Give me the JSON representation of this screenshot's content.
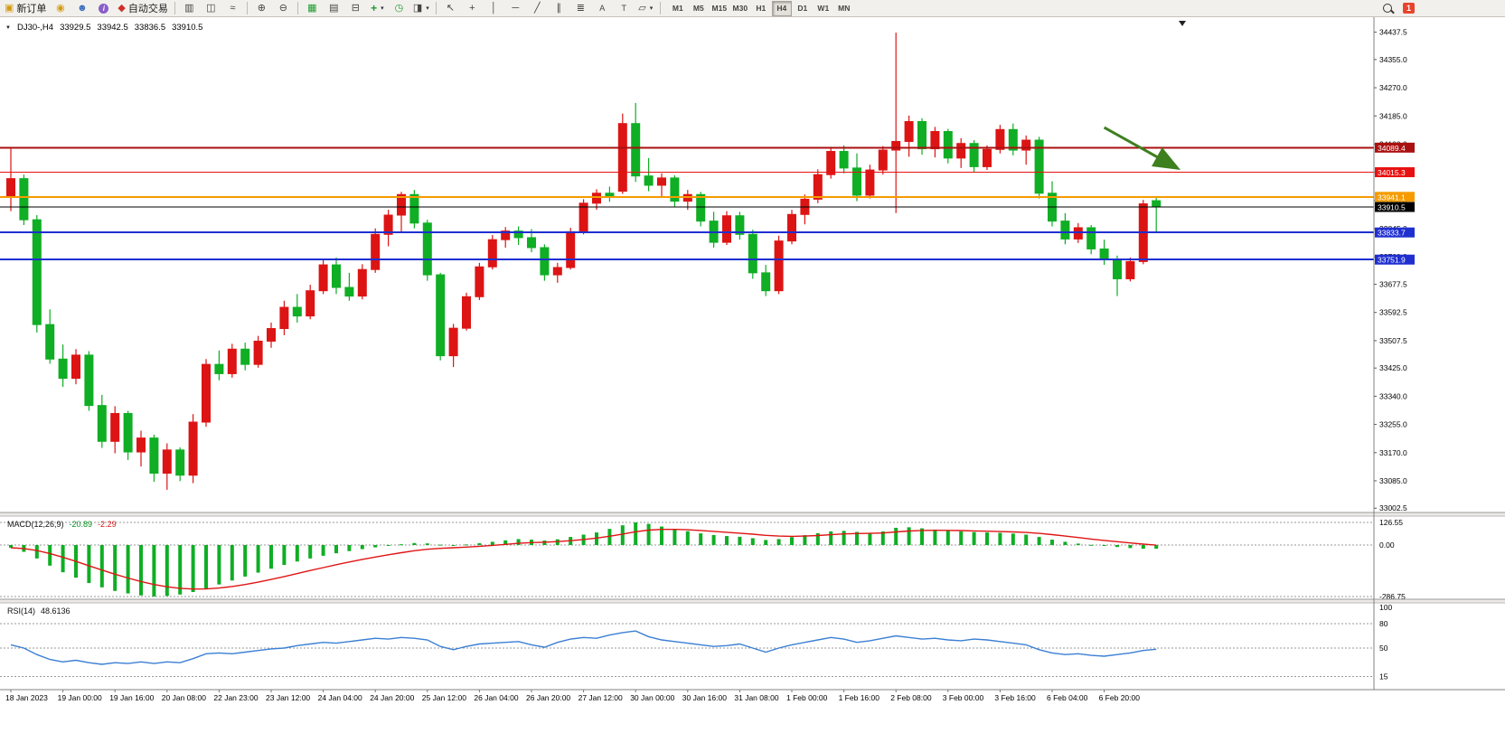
{
  "toolbar": {
    "new_order": "新订单",
    "auto_trading": "自动交易",
    "timeframes": [
      "M1",
      "M5",
      "M15",
      "M30",
      "H1",
      "H4",
      "D1",
      "W1",
      "MN"
    ],
    "active_timeframe": "H4",
    "notification_count": "1"
  },
  "icons": {
    "expand": "▼",
    "new_order": "▣",
    "coins": "◉",
    "profile": "☻",
    "info": "i",
    "auto_trading": "◆",
    "chart_bars": "▥",
    "chart_candles": "◫",
    "chart_line": "≈",
    "zoom_in": "⊕",
    "zoom_out": "⊖",
    "tile": "▦",
    "cascade": "▤",
    "arrange": "⊟",
    "new_chart": "+",
    "autoscroll": "◷",
    "shift_chart": "◨",
    "cursor": "↖",
    "crosshair": "+",
    "vline": "│",
    "hline": "─",
    "trendline": "╱",
    "channel": "∥",
    "fibonacci": "≣",
    "text": "A",
    "label": "T",
    "shapes": "▱",
    "dropdown": "▾",
    "shift_marker": "▼"
  },
  "chart_header": {
    "symbol": "DJ30-,H4",
    "open": "33929.5",
    "high": "33942.5",
    "low": "33836.5",
    "close": "33910.5"
  },
  "chart_data": {
    "type": "candlestick",
    "symbol": "DJ30-",
    "timeframe": "H4",
    "colors": {
      "up": "#dd1414",
      "down": "#0fae24",
      "macd_hist": "#0fae24",
      "macd_signal": "#e01515",
      "rsi_line": "#3b7fd4",
      "grid": "#a8a8a8",
      "axis_text": "#000000"
    },
    "price_axis_ticks": [
      34437.5,
      34355.0,
      34270.0,
      34185.0,
      34100.0,
      34015.0,
      33930.0,
      33845.0,
      33760.0,
      33677.5,
      33592.5,
      33507.5,
      33425.0,
      33340.0,
      33255.0,
      33170.0,
      33085.0,
      33002.5
    ],
    "hlines": [
      {
        "price": 34089.4,
        "label": "34089.4",
        "color": "#aa1111",
        "width": 2
      },
      {
        "price": 34015.3,
        "label": "34015.3",
        "color": "#e81111",
        "width": 1.2
      },
      {
        "price": 33941.1,
        "label": "33941.1",
        "color": "#f59b00",
        "width": 2
      },
      {
        "price": 33833.7,
        "label": "33833.7",
        "color": "#1f2fd0",
        "width": 2
      },
      {
        "price": 33751.9,
        "label": "33751.9",
        "color": "#1f2fd0",
        "width": 2
      }
    ],
    "current_price": {
      "price": 33910.5,
      "label": "33910.5",
      "color": "#000000"
    },
    "annotation_arrow": {
      "from_bar": 84,
      "from_price": 34150,
      "to_bar": 89.5,
      "to_price": 34030,
      "color": "#3e7f1f"
    },
    "time_labels": [
      "18 Jan 2023",
      "19 Jan 00:00",
      "19 Jan 16:00",
      "20 Jan 08:00",
      "22 Jan 23:00",
      "23 Jan 12:00",
      "24 Jan 04:00",
      "24 Jan 20:00",
      "25 Jan 12:00",
      "26 Jan 04:00",
      "26 Jan 20:00",
      "27 Jan 12:00",
      "30 Jan 00:00",
      "30 Jan 16:00",
      "31 Jan 08:00",
      "1 Feb 00:00",
      "1 Feb 16:00",
      "2 Feb 08:00",
      "3 Feb 00:00",
      "3 Feb 16:00",
      "6 Feb 04:00",
      "6 Feb 20:00"
    ],
    "candles": [
      [
        33940,
        34090,
        33898,
        33996
      ],
      [
        33996,
        34008,
        33856,
        33872
      ],
      [
        33872,
        33886,
        33532,
        33556
      ],
      [
        33556,
        33602,
        33438,
        33452
      ],
      [
        33452,
        33496,
        33368,
        33394
      ],
      [
        33394,
        33482,
        33376,
        33464
      ],
      [
        33464,
        33476,
        33296,
        33312
      ],
      [
        33312,
        33344,
        33184,
        33204
      ],
      [
        33204,
        33310,
        33168,
        33288
      ],
      [
        33288,
        33296,
        33148,
        33172
      ],
      [
        33172,
        33236,
        33128,
        33214
      ],
      [
        33214,
        33224,
        33082,
        33108
      ],
      [
        33108,
        33198,
        33058,
        33178
      ],
      [
        33178,
        33186,
        33084,
        33102
      ],
      [
        33102,
        33286,
        33078,
        33262
      ],
      [
        33262,
        33452,
        33248,
        33436
      ],
      [
        33436,
        33478,
        33388,
        33408
      ],
      [
        33408,
        33498,
        33396,
        33482
      ],
      [
        33482,
        33502,
        33418,
        33436
      ],
      [
        33436,
        33522,
        33426,
        33506
      ],
      [
        33506,
        33562,
        33486,
        33544
      ],
      [
        33544,
        33628,
        33524,
        33608
      ],
      [
        33608,
        33648,
        33562,
        33582
      ],
      [
        33582,
        33676,
        33572,
        33658
      ],
      [
        33658,
        33752,
        33648,
        33736
      ],
      [
        33736,
        33758,
        33648,
        33668
      ],
      [
        33668,
        33712,
        33628,
        33642
      ],
      [
        33642,
        33738,
        33632,
        33722
      ],
      [
        33722,
        33846,
        33712,
        33828
      ],
      [
        33828,
        33902,
        33792,
        33886
      ],
      [
        33886,
        33956,
        33836,
        33948
      ],
      [
        33948,
        33962,
        33846,
        33862
      ],
      [
        33862,
        33872,
        33688,
        33706
      ],
      [
        33706,
        33712,
        33448,
        33462
      ],
      [
        33462,
        33558,
        33428,
        33545
      ],
      [
        33545,
        33652,
        33538,
        33640
      ],
      [
        33640,
        33742,
        33630,
        33730
      ],
      [
        33730,
        33826,
        33722,
        33812
      ],
      [
        33812,
        33850,
        33788,
        33838
      ],
      [
        33838,
        33852,
        33796,
        33818
      ],
      [
        33818,
        33844,
        33774,
        33788
      ],
      [
        33788,
        33798,
        33688,
        33706
      ],
      [
        33706,
        33742,
        33682,
        33728
      ],
      [
        33728,
        33848,
        33722,
        33836
      ],
      [
        33836,
        33934,
        33828,
        33922
      ],
      [
        33922,
        33964,
        33902,
        33952
      ],
      [
        33952,
        33972,
        33926,
        33944
      ],
      [
        33958,
        34192,
        33950,
        34162
      ],
      [
        34162,
        34224,
        33986,
        34004
      ],
      [
        34004,
        34058,
        33958,
        33976
      ],
      [
        33976,
        34012,
        33942,
        33998
      ],
      [
        33998,
        34006,
        33912,
        33928
      ],
      [
        33928,
        33962,
        33902,
        33948
      ],
      [
        33948,
        33956,
        33852,
        33868
      ],
      [
        33868,
        33896,
        33788,
        33804
      ],
      [
        33804,
        33898,
        33796,
        33884
      ],
      [
        33884,
        33896,
        33812,
        33828
      ],
      [
        33828,
        33842,
        33694,
        33712
      ],
      [
        33712,
        33736,
        33642,
        33658
      ],
      [
        33658,
        33824,
        33648,
        33808
      ],
      [
        33808,
        33902,
        33798,
        33888
      ],
      [
        33888,
        33948,
        33858,
        33934
      ],
      [
        33934,
        34024,
        33922,
        34008
      ],
      [
        34008,
        34092,
        33996,
        34078
      ],
      [
        34078,
        34096,
        34012,
        34028
      ],
      [
        34028,
        34072,
        33928,
        33946
      ],
      [
        33946,
        34038,
        33936,
        34022
      ],
      [
        34022,
        34094,
        34008,
        34082
      ],
      [
        34082,
        34436,
        33892,
        34108
      ],
      [
        34108,
        34186,
        34062,
        34168
      ],
      [
        34168,
        34178,
        34068,
        34086
      ],
      [
        34086,
        34152,
        34060,
        34138
      ],
      [
        34138,
        34146,
        34042,
        34058
      ],
      [
        34058,
        34118,
        34028,
        34102
      ],
      [
        34102,
        34112,
        34016,
        34032
      ],
      [
        34032,
        34096,
        34022,
        34084
      ],
      [
        34084,
        34158,
        34072,
        34144
      ],
      [
        34144,
        34162,
        34066,
        34082
      ],
      [
        34082,
        34126,
        34038,
        34112
      ],
      [
        34112,
        34122,
        33936,
        33952
      ],
      [
        33952,
        33988,
        33852,
        33868
      ],
      [
        33868,
        33892,
        33798,
        33814
      ],
      [
        33814,
        33862,
        33802,
        33848
      ],
      [
        33848,
        33856,
        33768,
        33784
      ],
      [
        33784,
        33812,
        33736,
        33752
      ],
      [
        33752,
        33764,
        33642,
        33694
      ],
      [
        33694,
        33758,
        33686,
        33746
      ],
      [
        33746,
        33932,
        33738,
        33920
      ],
      [
        33929.5,
        33942.5,
        33836.5,
        33910.5
      ]
    ],
    "macd": {
      "name": "MACD(12,26,9)",
      "value": "-20.89",
      "signal_value": "-2.29",
      "scale_values": [
        126.55,
        0,
        -286.75
      ],
      "histogram": [
        -15,
        -38,
        -75,
        -115,
        -152,
        -182,
        -212,
        -236,
        -256,
        -270,
        -281,
        -287,
        -284,
        -276,
        -262,
        -242,
        -220,
        -198,
        -176,
        -154,
        -132,
        -111,
        -92,
        -75,
        -60,
        -46,
        -34,
        -23,
        -13,
        -4,
        4,
        11,
        9,
        2,
        -2,
        3,
        10,
        18,
        26,
        33,
        30,
        25,
        32,
        45,
        58,
        70,
        90,
        110,
        126,
        118,
        103,
        89,
        77,
        65,
        56,
        50,
        46,
        38,
        28,
        33,
        44,
        55,
        66,
        76,
        79,
        73,
        68,
        76,
        96,
        99,
        93,
        86,
        80,
        76,
        72,
        70,
        68,
        64,
        58,
        45,
        30,
        18,
        8,
        1,
        -5,
        -11,
        -17,
        -21,
        -20.89
      ]
    },
    "rsi": {
      "name": "RSI(14)",
      "value": "48.6136",
      "levels": [
        100,
        80,
        50,
        15
      ],
      "values": [
        54,
        50,
        42,
        36,
        33,
        35,
        32,
        30,
        32,
        31,
        33,
        31,
        33,
        32,
        37,
        43,
        44,
        43,
        45,
        47,
        49,
        50,
        53,
        55,
        57,
        56,
        58,
        60,
        62,
        61,
        63,
        62,
        60,
        52,
        48,
        52,
        55,
        56,
        57,
        58,
        54,
        51,
        57,
        61,
        63,
        62,
        66,
        69,
        71,
        64,
        60,
        58,
        56,
        54,
        52,
        53,
        55,
        50,
        45,
        50,
        54,
        57,
        60,
        63,
        61,
        57,
        59,
        62,
        65,
        63,
        61,
        62,
        60,
        59,
        61,
        60,
        58,
        56,
        54,
        48,
        44,
        42,
        43,
        41,
        40,
        42,
        44,
        47,
        48.61
      ]
    }
  }
}
